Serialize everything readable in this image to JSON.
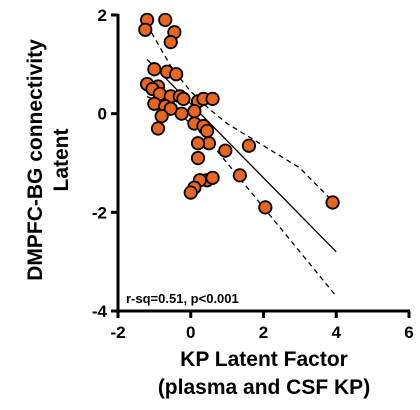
{
  "chart_data": {
    "type": "scatter",
    "xlabel": [
      "KP Latent Factor",
      "(plasma and CSF KP)"
    ],
    "ylabel": [
      "DMPFC-BG connectivity",
      "Latent"
    ],
    "xlim": [
      -2,
      6
    ],
    "ylim": [
      -4,
      2
    ],
    "x_ticks": [
      -2,
      0,
      2,
      4,
      6
    ],
    "y_ticks": [
      -4,
      -2,
      0,
      2
    ],
    "annotation": "r-sq=0.51, p<0.001",
    "marker_color": "#e8661f",
    "marker_edge": "#000000",
    "grid": false,
    "fit_line": {
      "x": [
        -1.2,
        4.0
      ],
      "y": [
        1.1,
        -2.8
      ]
    },
    "ci_upper": {
      "x": [
        -1.2,
        -0.5,
        0.0,
        0.5,
        1.0,
        2.0,
        3.0,
        4.0
      ],
      "y": [
        1.8,
        0.9,
        0.45,
        0.1,
        -0.2,
        -0.65,
        -1.1,
        -1.85
      ]
    },
    "ci_lower": {
      "x": [
        -1.2,
        -0.5,
        0.0,
        0.5,
        1.0,
        2.0,
        3.0,
        4.0
      ],
      "y": [
        0.35,
        0.1,
        -0.2,
        -0.55,
        -1.0,
        -1.9,
        -2.8,
        -3.7
      ]
    },
    "points": [
      {
        "x": -1.2,
        "y": 1.9
      },
      {
        "x": -0.7,
        "y": 1.9
      },
      {
        "x": -1.25,
        "y": 1.7
      },
      {
        "x": -0.45,
        "y": 1.65
      },
      {
        "x": -0.55,
        "y": 1.45
      },
      {
        "x": -1.0,
        "y": 0.9
      },
      {
        "x": -0.65,
        "y": 0.85
      },
      {
        "x": -0.4,
        "y": 0.8
      },
      {
        "x": -1.2,
        "y": 0.6
      },
      {
        "x": -0.9,
        "y": 0.55
      },
      {
        "x": -1.05,
        "y": 0.5
      },
      {
        "x": -0.85,
        "y": 0.4
      },
      {
        "x": -0.55,
        "y": 0.35
      },
      {
        "x": -0.3,
        "y": 0.35
      },
      {
        "x": -1.0,
        "y": 0.2
      },
      {
        "x": -0.7,
        "y": 0.15
      },
      {
        "x": -0.55,
        "y": 0.1
      },
      {
        "x": -0.2,
        "y": 0.3
      },
      {
        "x": 0.2,
        "y": 0.25
      },
      {
        "x": 0.35,
        "y": 0.3
      },
      {
        "x": 0.6,
        "y": 0.3
      },
      {
        "x": 0.1,
        "y": 0.05
      },
      {
        "x": -0.25,
        "y": 0.0
      },
      {
        "x": -0.8,
        "y": -0.05
      },
      {
        "x": 0.1,
        "y": -0.2
      },
      {
        "x": 0.35,
        "y": -0.25
      },
      {
        "x": 0.45,
        "y": -0.35
      },
      {
        "x": -0.9,
        "y": -0.3
      },
      {
        "x": 0.5,
        "y": -0.6
      },
      {
        "x": 0.2,
        "y": -0.6
      },
      {
        "x": 0.95,
        "y": -0.75
      },
      {
        "x": 0.2,
        "y": -0.9
      },
      {
        "x": 1.6,
        "y": -0.65
      },
      {
        "x": 0.45,
        "y": -1.35
      },
      {
        "x": 0.6,
        "y": -1.3
      },
      {
        "x": 0.25,
        "y": -1.35
      },
      {
        "x": 0.1,
        "y": -1.5
      },
      {
        "x": 0.0,
        "y": -1.6
      },
      {
        "x": 1.35,
        "y": -1.25
      },
      {
        "x": 2.05,
        "y": -1.9
      },
      {
        "x": 3.9,
        "y": -1.8
      }
    ]
  }
}
